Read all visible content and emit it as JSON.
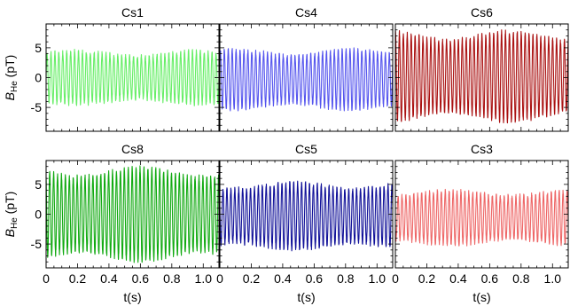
{
  "chart_data": {
    "type": "line",
    "layout": "2x3 grid, shared y-axis per row, shared x-axis per column",
    "xlabel": "t(s)",
    "ylabel_main": "B",
    "ylabel_sub": "He",
    "ylabel_unit": "(pT)",
    "xlim": [
      0,
      1.1
    ],
    "ylim": [
      -9,
      9
    ],
    "x_ticks": [
      "0",
      "0.2",
      "0.4",
      "0.6",
      "0.8",
      "1.0"
    ],
    "x_tick_values": [
      0,
      0.2,
      0.4,
      0.6,
      0.8,
      1.0
    ],
    "y_ticks": [
      "-5",
      "0",
      "5"
    ],
    "y_tick_values": [
      -5,
      0,
      5
    ],
    "signal_frequency_hz": 40,
    "sample_rate_hz": 1200,
    "panels": [
      {
        "title": "Cs1",
        "color": "#66ee66",
        "amplitude": 4.4,
        "offset": 0.0
      },
      {
        "title": "Cs4",
        "color": "#5555ee",
        "amplitude": 5.0,
        "offset": -0.3
      },
      {
        "title": "Cs6",
        "color": "#aa1111",
        "amplitude": 7.5,
        "offset": 0.2
      },
      {
        "title": "Cs8",
        "color": "#11aa11",
        "amplitude": 7.8,
        "offset": 0.0
      },
      {
        "title": "Cs5",
        "color": "#111199",
        "amplitude": 5.6,
        "offset": -0.3
      },
      {
        "title": "Cs3",
        "color": "#ee6666",
        "amplitude": 4.5,
        "offset": -0.6
      }
    ]
  }
}
